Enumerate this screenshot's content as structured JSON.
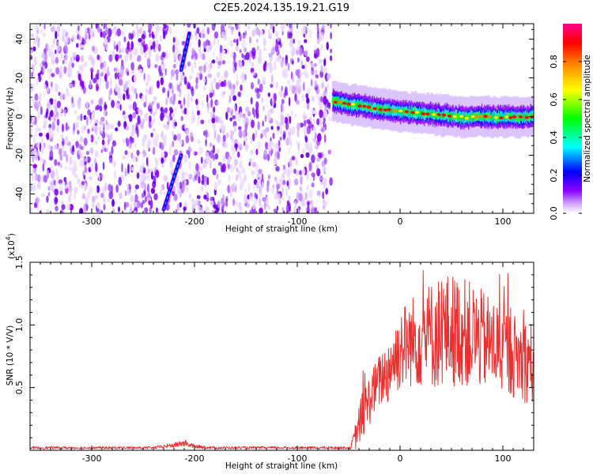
{
  "title": "C2E5.2024.135.19.21.G19",
  "chart_data": [
    {
      "type": "heatmap",
      "xlabel": "Height of straight line (km)",
      "ylabel": "Frequency (Hz)",
      "xlim": [
        -360,
        130
      ],
      "ylim": [
        -50,
        48
      ],
      "xticks": [
        -300,
        -200,
        -100,
        0,
        100
      ],
      "xtick_labels": [
        "-300",
        "-200",
        "-100",
        "0",
        "100"
      ],
      "yticks": [
        -40,
        -20,
        0,
        20,
        40
      ],
      "ytick_labels": [
        "-40",
        "-20",
        "0",
        "20",
        "40"
      ],
      "colorbar": {
        "label": "Normalized spectral amplitude",
        "range": [
          0,
          1
        ],
        "ticks": [
          0.0,
          0.2,
          0.4,
          0.6,
          0.8
        ],
        "tick_labels": [
          "0.0",
          "0.2",
          "0.4",
          "0.6",
          "0.8"
        ],
        "colormap": [
          "#ffffff",
          "#8a00ff",
          "#0000ff",
          "#00ffff",
          "#00ff00",
          "#ffff00",
          "#ff8c00",
          "#ff0000",
          "#ff0090"
        ]
      },
      "noise_region": {
        "x_range": [
          -360,
          -67
        ],
        "amplitude": "0.1-0.4"
      },
      "signal_trace": [
        {
          "x": -65,
          "y": 8
        },
        {
          "x": -55,
          "y": 7
        },
        {
          "x": -45,
          "y": 6
        },
        {
          "x": -35,
          "y": 5.5
        },
        {
          "x": -25,
          "y": 4.5
        },
        {
          "x": -15,
          "y": 3.5
        },
        {
          "x": -5,
          "y": 3
        },
        {
          "x": 5,
          "y": 2.5
        },
        {
          "x": 15,
          "y": 2
        },
        {
          "x": 25,
          "y": 1.5
        },
        {
          "x": 35,
          "y": 1
        },
        {
          "x": 45,
          "y": 0.5
        },
        {
          "x": 55,
          "y": 0
        },
        {
          "x": 65,
          "y": -0.5
        },
        {
          "x": 75,
          "y": 0
        },
        {
          "x": 85,
          "y": 0
        },
        {
          "x": 95,
          "y": -0.5
        },
        {
          "x": 105,
          "y": 0
        },
        {
          "x": 115,
          "y": -0.5
        },
        {
          "x": 125,
          "y": 0
        }
      ],
      "streaks": [
        {
          "x": [
            -230,
            -213
          ],
          "y": [
            -48,
            -20
          ]
        },
        {
          "x": [
            -213,
            -205
          ],
          "y": [
            24,
            43
          ]
        }
      ]
    },
    {
      "type": "line",
      "xlabel": "Height of straight line (km)",
      "ylabel": "SNR (10 * V/V)",
      "y_multiplier": "(x10",
      "y_multiplier_exp": "4",
      "y_multiplier_close": ")",
      "xlim": [
        -360,
        130
      ],
      "ylim": [
        0,
        1.5
      ],
      "xticks": [
        -300,
        -200,
        -100,
        0,
        100
      ],
      "xtick_labels": [
        "-300",
        "-200",
        "-100",
        "0",
        "100"
      ],
      "yticks": [
        0.5,
        1.0,
        1.5
      ],
      "ytick_labels": [
        "0.5",
        "1.0",
        "1.5"
      ],
      "color": "#e83030",
      "series": [
        {
          "x": [
            -360,
            -320,
            -280,
            -240,
            -220,
            -210,
            -200,
            -180,
            -140,
            -100,
            -60,
            -48,
            -44,
            -40,
            -36,
            -32,
            -28,
            -24,
            -20,
            -16,
            -12,
            -8,
            -4,
            0,
            10,
            20,
            30,
            40,
            50,
            60,
            70,
            80,
            90,
            100,
            110,
            120,
            130
          ],
          "values": [
            0.02,
            0.02,
            0.02,
            0.02,
            0.04,
            0.06,
            0.03,
            0.02,
            0.02,
            0.02,
            0.02,
            0.02,
            0.1,
            0.2,
            0.3,
            0.35,
            0.45,
            0.5,
            0.55,
            0.6,
            0.62,
            0.72,
            0.74,
            0.82,
            0.86,
            0.9,
            0.92,
            0.95,
            0.96,
            0.95,
            0.92,
            0.88,
            0.85,
            0.8,
            0.76,
            0.72,
            0.7
          ],
          "noise_amplitude": [
            0.01,
            0.01,
            0.01,
            0.01,
            0.02,
            0.03,
            0.015,
            0.01,
            0.01,
            0.01,
            0.01,
            0.01,
            0.1,
            0.16,
            0.2,
            0.2,
            0.22,
            0.2,
            0.22,
            0.24,
            0.26,
            0.3,
            0.32,
            0.34,
            0.36,
            0.4,
            0.44,
            0.46,
            0.46,
            0.44,
            0.42,
            0.4,
            0.38,
            0.36,
            0.34,
            0.34,
            0.34
          ]
        }
      ]
    }
  ]
}
